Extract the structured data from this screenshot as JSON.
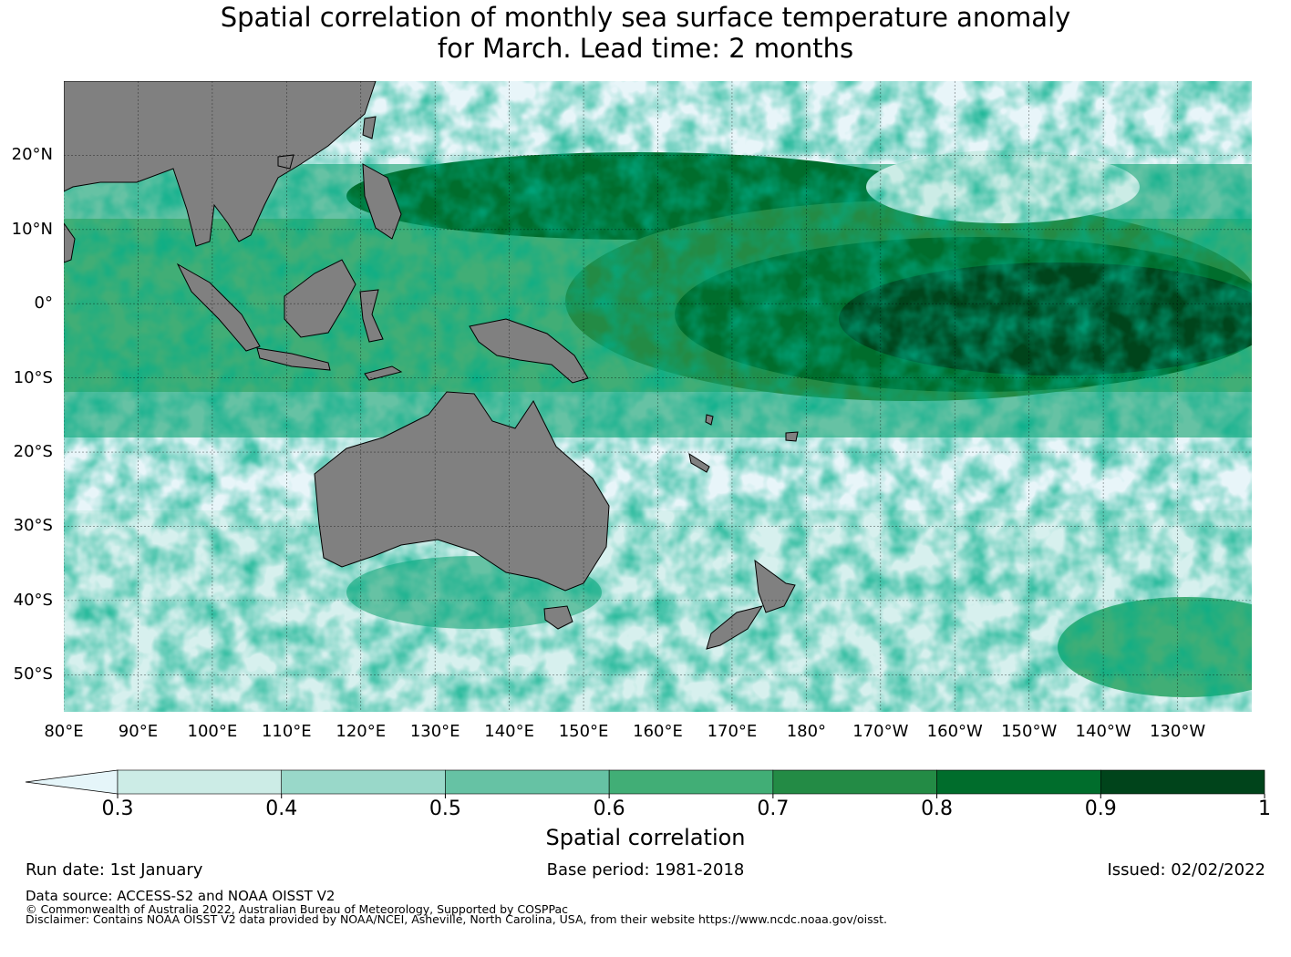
{
  "title_line1": "Spatial correlation of monthly sea surface temperature anomaly",
  "title_line2": "for March. Lead time: 2 months",
  "map": {
    "lat_labels": [
      "20°N",
      "10°N",
      "0°",
      "10°S",
      "20°S",
      "30°S",
      "40°S",
      "50°S"
    ],
    "lat_values": [
      20,
      10,
      0,
      -10,
      -20,
      -30,
      -40,
      -50
    ],
    "lon_labels": [
      "80°E",
      "90°E",
      "100°E",
      "110°E",
      "120°E",
      "130°E",
      "140°E",
      "150°E",
      "160°E",
      "170°E",
      "180°",
      "170°W",
      "160°W",
      "150°W",
      "140°W",
      "130°W"
    ],
    "lon_values": [
      80,
      90,
      100,
      110,
      120,
      130,
      140,
      150,
      160,
      170,
      180,
      190,
      200,
      210,
      220,
      230
    ],
    "lon_range": [
      80,
      240
    ],
    "lat_range": [
      -55,
      30
    ],
    "land_color": "#808080",
    "ocean_fill": "#e8f5f9"
  },
  "colorbar": {
    "levels": [
      0.3,
      0.4,
      0.5,
      0.6,
      0.7,
      0.8,
      0.9,
      1
    ],
    "tick_labels": [
      "0.3",
      "0.4",
      "0.5",
      "0.6",
      "0.7",
      "0.8",
      "0.9",
      "1"
    ],
    "colors": [
      "#e5f5f9",
      "#ccece6",
      "#99d8c9",
      "#66c2a4",
      "#41ae76",
      "#238b45",
      "#006d2c",
      "#00441b"
    ],
    "label": "Spatial correlation"
  },
  "footer": {
    "run_date": "Run date: 1st January",
    "base_period": "Base period: 1981-2018",
    "issued": "Issued: 02/02/2022",
    "data_source": "Data source: ACCESS-S2 and NOAA OISST V2",
    "copyright": "© Commonwealth of Australia 2022, Australian Bureau of Meteorology, Supported by COSPPac",
    "disclaimer": "Disclaimer: Contains NOAA OISST V2 data provided by NOAA/NCEI, Asheville, North Carolina, USA, from their website https://www.ncdc.noaa.gov/oisst."
  }
}
